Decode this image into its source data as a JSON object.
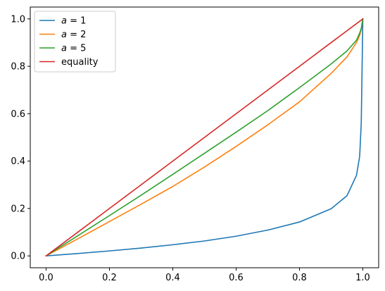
{
  "chart_data": {
    "type": "line",
    "title": "",
    "xlabel": "",
    "ylabel": "",
    "xlim": [
      -0.05,
      1.05
    ],
    "ylim": [
      -0.05,
      1.05
    ],
    "x_ticks": [
      "0.0",
      "0.2",
      "0.4",
      "0.6",
      "0.8",
      "1.0"
    ],
    "y_ticks": [
      "0.0",
      "0.2",
      "0.4",
      "0.6",
      "0.8",
      "1.0"
    ],
    "grid": false,
    "legend_position": "top-left",
    "x": [
      0,
      0.1,
      0.2,
      0.3,
      0.4,
      0.5,
      0.6,
      0.7,
      0.8,
      0.9,
      0.95,
      0.98,
      0.99,
      0.995,
      1.0
    ],
    "series": [
      {
        "name": "a = 1",
        "legend_var": "a",
        "legend_value": "1",
        "color": "#1f77b4",
        "values": [
          0,
          0.01,
          0.021,
          0.033,
          0.047,
          0.063,
          0.083,
          0.109,
          0.143,
          0.199,
          0.254,
          0.34,
          0.42,
          0.56,
          1.0
        ]
      },
      {
        "name": "a = 2",
        "legend_var": "a",
        "legend_value": "2",
        "color": "#ff7f0e",
        "values": [
          0,
          0.072,
          0.145,
          0.218,
          0.293,
          0.375,
          0.462,
          0.553,
          0.65,
          0.77,
          0.84,
          0.9,
          0.93,
          0.955,
          1.0
        ]
      },
      {
        "name": "a = 5",
        "legend_var": "a",
        "legend_value": "5",
        "color": "#2ca02c",
        "values": [
          0,
          0.085,
          0.17,
          0.256,
          0.344,
          0.433,
          0.522,
          0.613,
          0.71,
          0.81,
          0.865,
          0.91,
          0.94,
          0.96,
          1.0
        ]
      },
      {
        "name": "equality",
        "legend_var": "",
        "legend_value": "",
        "label": "equality",
        "color": "#d62728",
        "values": [
          0,
          0.1,
          0.2,
          0.3,
          0.4,
          0.5,
          0.6,
          0.7,
          0.8,
          0.9,
          0.95,
          0.98,
          0.99,
          0.995,
          1.0
        ]
      }
    ]
  }
}
